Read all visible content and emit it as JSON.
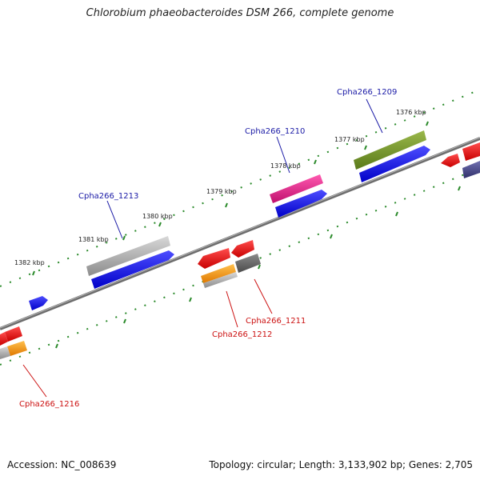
{
  "title": "Chlorobium phaeobacteroides DSM 266, complete genome",
  "footer": {
    "accession": "Accession: NC_008639",
    "summary": "Topology: circular; Length: 3,133,902 bp; Genes: 2,705"
  },
  "scale_labels": [
    "1376 kbp",
    "1377 kbp",
    "1378 kbp",
    "1379 kbp",
    "1380 kbp",
    "1381 kbp",
    "1382 kbp"
  ],
  "gene_labels": {
    "forward": [
      "Cpha266_1209",
      "Cpha266_1210",
      "Cpha266_1213"
    ],
    "reverse": [
      "Cpha266_1211",
      "Cpha266_1212",
      "Cpha266_1216"
    ]
  },
  "colors": {
    "forward_label": "#1a1aa6",
    "reverse_label": "#cc1111",
    "backbone": "#808080",
    "tick": "#2a8a2a",
    "blue": "#0000ee",
    "red": "#ee0000",
    "olive": "#6b8e23",
    "magenta": "#e0198a",
    "gray": "#9a9a9a",
    "dark_gray": "#5a5a5a",
    "orange": "#ff9900",
    "slate": "#48488a"
  }
}
